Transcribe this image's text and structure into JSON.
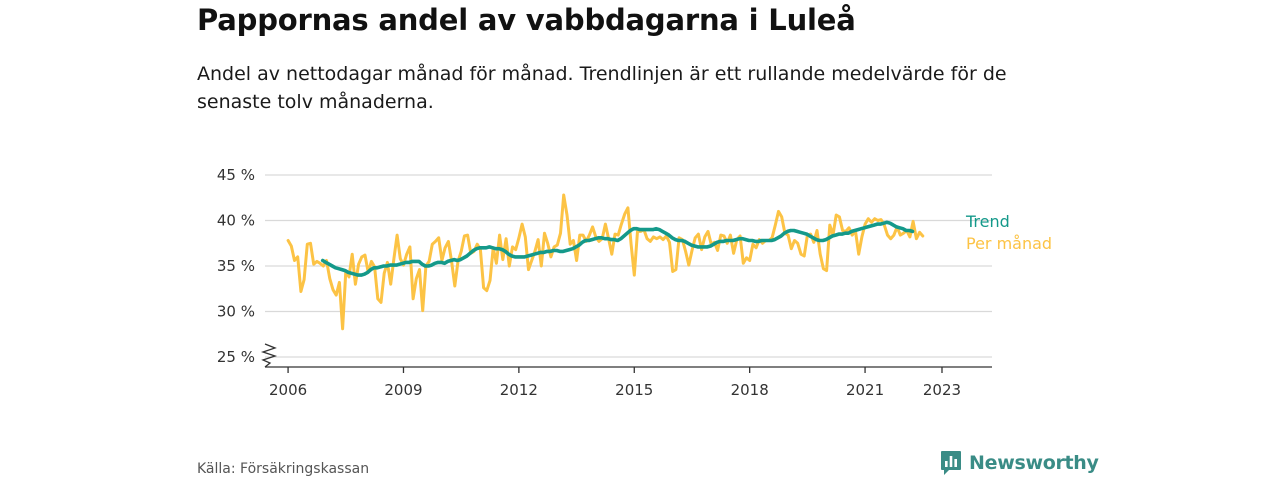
{
  "title": "Pappornas andel av vabbdagarna i Luleå",
  "subtitle": "Andel av nettodagar månad för månad. Trendlinjen är ett rullande medelvärde för de senaste tolv månaderna.",
  "source": "Källa: Försäkringskassan",
  "brand": "Newsworthy",
  "colors": {
    "trend": "#14998a",
    "monthly": "#fcc345",
    "grid": "#d9d9d9",
    "axis": "#333333",
    "brand": "#3a8c86"
  },
  "chart_data": {
    "type": "line",
    "title": "Pappornas andel av vabbdagarna i Luleå",
    "xlabel": "",
    "ylabel": "",
    "ylim": [
      25,
      45
    ],
    "xlim": [
      2005.4,
      2024.3
    ],
    "yticks": [
      25,
      30,
      35,
      40,
      45
    ],
    "ytick_labels": [
      "25 %",
      "30 %",
      "35 %",
      "40 %",
      "45 %"
    ],
    "xticks": [
      2006,
      2009,
      2012,
      2015,
      2018,
      2021,
      2023
    ],
    "xtick_labels": [
      "2006",
      "2009",
      "2012",
      "2015",
      "2018",
      "2021",
      "2023"
    ],
    "axis_break": true,
    "grid": true,
    "legend": "end-of-line labels",
    "series": [
      {
        "name": "Per månad",
        "color": "#fcc345",
        "start": 2006.0,
        "step": 0.0833333,
        "values": [
          37.8,
          37.2,
          35.6,
          36.0,
          32.2,
          33.5,
          37.4,
          37.5,
          35.2,
          35.5,
          35.3,
          35.0,
          35.6,
          33.6,
          32.4,
          31.8,
          33.2,
          28.1,
          34.4,
          33.8,
          36.3,
          33.0,
          35.2,
          36.0,
          36.2,
          34.3,
          35.5,
          34.9,
          31.4,
          31.0,
          34.2,
          35.4,
          33.0,
          35.8,
          38.4,
          35.8,
          35.1,
          36.3,
          37.1,
          31.4,
          33.6,
          34.6,
          30.1,
          35.0,
          35.5,
          37.4,
          37.7,
          38.1,
          35.6,
          37.0,
          37.7,
          35.5,
          32.8,
          35.5,
          36.6,
          38.3,
          38.4,
          36.4,
          36.6,
          37.4,
          36.8,
          32.6,
          32.3,
          33.4,
          37.0,
          35.3,
          38.4,
          35.7,
          38.0,
          35.0,
          37.1,
          36.8,
          38.1,
          39.6,
          38.2,
          34.6,
          35.6,
          36.6,
          37.9,
          35.0,
          38.6,
          37.5,
          36.0,
          37.1,
          37.3,
          38.6,
          42.8,
          40.6,
          37.4,
          37.8,
          35.6,
          38.4,
          38.4,
          37.7,
          38.4,
          39.3,
          38.2,
          37.7,
          38.0,
          39.6,
          38.0,
          36.3,
          38.5,
          38.4,
          39.6,
          40.7,
          41.4,
          37.4,
          34.0,
          38.8,
          38.8,
          39.0,
          38.0,
          37.7,
          38.2,
          38.0,
          38.2,
          37.9,
          38.3,
          37.6,
          34.4,
          34.6,
          38.1,
          37.9,
          36.6,
          35.1,
          36.7,
          38.1,
          38.5,
          36.8,
          38.2,
          38.8,
          37.4,
          37.6,
          36.7,
          38.4,
          38.3,
          37.5,
          38.4,
          36.4,
          37.9,
          38.3,
          35.3,
          35.9,
          35.6,
          37.4,
          37.0,
          37.9,
          37.5,
          37.8,
          37.8,
          38.1,
          39.5,
          41.0,
          40.4,
          38.6,
          38.4,
          36.9,
          37.8,
          37.5,
          36.3,
          36.1,
          38.4,
          38.5,
          37.6,
          38.9,
          36.3,
          34.7,
          34.5,
          39.5,
          38.4,
          40.6,
          40.4,
          38.9,
          38.8,
          39.2,
          38.4,
          38.9,
          36.3,
          38.2,
          39.6,
          40.2,
          39.8,
          40.2,
          40.0,
          40.1,
          39.5,
          38.4,
          38.0,
          38.4,
          39.3,
          38.4,
          38.6,
          38.9,
          38.2,
          39.9,
          38.0,
          38.7,
          38.3
        ]
      },
      {
        "name": "Trend",
        "color": "#14998a",
        "start": 2006.9,
        "step": 0.0833333,
        "values": [
          35.6,
          35.4,
          35.2,
          35.0,
          34.8,
          34.7,
          34.6,
          34.5,
          34.3,
          34.2,
          34.1,
          34.0,
          34.0,
          34.1,
          34.3,
          34.6,
          34.8,
          34.8,
          34.9,
          35.0,
          35.0,
          35.1,
          35.1,
          35.1,
          35.2,
          35.3,
          35.4,
          35.4,
          35.5,
          35.5,
          35.5,
          35.2,
          35.0,
          35.0,
          35.1,
          35.3,
          35.4,
          35.4,
          35.3,
          35.5,
          35.6,
          35.7,
          35.6,
          35.7,
          35.9,
          36.1,
          36.4,
          36.7,
          36.9,
          37.0,
          37.0,
          37.0,
          37.1,
          37.0,
          36.9,
          36.9,
          36.8,
          36.6,
          36.3,
          36.1,
          36.0,
          36.0,
          36.0,
          36.0,
          36.1,
          36.2,
          36.3,
          36.4,
          36.5,
          36.5,
          36.6,
          36.6,
          36.7,
          36.7,
          36.6,
          36.6,
          36.7,
          36.8,
          36.9,
          37.1,
          37.3,
          37.6,
          37.8,
          37.8,
          37.9,
          38.0,
          38.1,
          38.1,
          38.0,
          38.0,
          37.9,
          37.9,
          37.8,
          38.0,
          38.3,
          38.6,
          38.9,
          39.1,
          39.1,
          39.0,
          39.0,
          39.0,
          39.0,
          39.0,
          39.1,
          39.0,
          38.8,
          38.6,
          38.4,
          38.1,
          37.9,
          37.8,
          37.8,
          37.7,
          37.5,
          37.3,
          37.2,
          37.1,
          37.1,
          37.1,
          37.1,
          37.2,
          37.4,
          37.6,
          37.7,
          37.7,
          37.8,
          37.8,
          37.8,
          37.9,
          38.0,
          38.0,
          37.9,
          37.8,
          37.8,
          37.7,
          37.7,
          37.8,
          37.8,
          37.8,
          37.8,
          37.9,
          38.1,
          38.3,
          38.6,
          38.8,
          38.9,
          38.9,
          38.8,
          38.7,
          38.6,
          38.5,
          38.3,
          38.1,
          37.9,
          37.8,
          37.8,
          37.9,
          38.1,
          38.3,
          38.4,
          38.5,
          38.5,
          38.6,
          38.6,
          38.8,
          38.9,
          39.0,
          39.1,
          39.2,
          39.3,
          39.4,
          39.5,
          39.6,
          39.6,
          39.7,
          39.8,
          39.7,
          39.5,
          39.3,
          39.2,
          39.1,
          38.9,
          38.9,
          38.8
        ]
      }
    ]
  }
}
